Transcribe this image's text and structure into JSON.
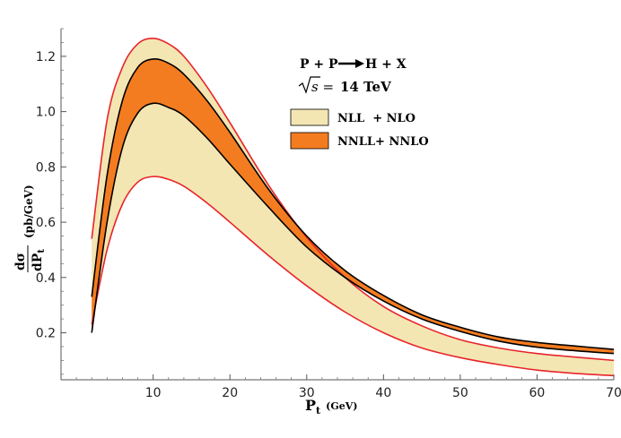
{
  "chart_data": {
    "type": "area",
    "title": "",
    "process": "P + P ⟶ H + X",
    "process_parts": [
      "P + P",
      "H + X"
    ],
    "energy": "14 TeV",
    "energy_prefix": "s =",
    "xlabel": "P",
    "xlabel_sub": "t",
    "xlabel_unit": "(GeV)",
    "ylabel_numerator": "dσ",
    "ylabel_denominator": "dP",
    "ylabel_denominator_sub": "t",
    "ylabel_unit": "(pb/GeV)",
    "xlim": [
      -2,
      70
    ],
    "ylim": [
      0.03,
      1.3
    ],
    "xticks": [
      10,
      20,
      30,
      40,
      50,
      60,
      70
    ],
    "xtick_labels": [
      "10",
      "20",
      "30",
      "40",
      "50",
      "60",
      "70"
    ],
    "yticks": [
      0.2,
      0.4,
      0.6,
      0.8,
      1.0,
      1.2
    ],
    "ytick_labels": [
      "0.2",
      "0.4",
      "0.6",
      "0.8",
      "1.0",
      "1.2"
    ],
    "legend_position": "top-right",
    "x": [
      2,
      4,
      6,
      8,
      10,
      12,
      14,
      17,
      20,
      25,
      30,
      35,
      40,
      45,
      50,
      55,
      60,
      65,
      70
    ],
    "series": [
      {
        "name": "NLL  + NLO",
        "color": "#f3e6b3",
        "edge_color": "#e8242a",
        "upper": [
          0.54,
          0.97,
          1.16,
          1.245,
          1.265,
          1.245,
          1.2,
          1.09,
          0.96,
          0.735,
          0.545,
          0.4,
          0.295,
          0.225,
          0.175,
          0.145,
          0.125,
          0.112,
          0.1
        ],
        "lower": [
          0.23,
          0.5,
          0.665,
          0.745,
          0.765,
          0.755,
          0.73,
          0.67,
          0.6,
          0.48,
          0.37,
          0.275,
          0.2,
          0.145,
          0.11,
          0.085,
          0.065,
          0.053,
          0.045
        ]
      },
      {
        "name": "NNLL+ NNLO",
        "color": "#f47c20",
        "edge_color": "#000000",
        "upper": [
          0.33,
          0.77,
          1.04,
          1.16,
          1.19,
          1.175,
          1.135,
          1.04,
          0.925,
          0.72,
          0.55,
          0.425,
          0.335,
          0.265,
          0.22,
          0.185,
          0.165,
          0.152,
          0.14
        ],
        "lower": [
          0.2,
          0.6,
          0.87,
          0.995,
          1.03,
          1.015,
          0.985,
          0.905,
          0.81,
          0.655,
          0.51,
          0.4,
          0.315,
          0.25,
          0.205,
          0.17,
          0.148,
          0.135,
          0.125
        ]
      }
    ]
  }
}
